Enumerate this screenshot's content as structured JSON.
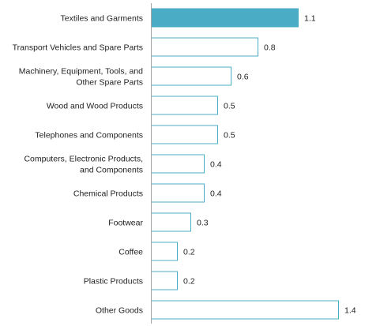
{
  "chart_data": {
    "type": "bar",
    "orientation": "horizontal",
    "categories": [
      [
        "Textiles and Garments"
      ],
      [
        "Transport Vehicles and Spare Parts"
      ],
      [
        "Machinery, Equipment, Tools, and",
        "Other Spare Parts"
      ],
      [
        "Wood and Wood Products"
      ],
      [
        "Telephones and Components"
      ],
      [
        "Computers, Electronic Products,",
        "and Components"
      ],
      [
        "Chemical Products"
      ],
      [
        "Footwear"
      ],
      [
        "Coffee"
      ],
      [
        "Plastic Products"
      ],
      [
        "Other Goods"
      ]
    ],
    "values": [
      1.1,
      0.8,
      0.6,
      0.5,
      0.5,
      0.4,
      0.4,
      0.3,
      0.2,
      0.2,
      1.4
    ],
    "value_labels": [
      "1.1",
      "0.8",
      "0.6",
      "0.5",
      "0.5",
      "0.4",
      "0.4",
      "0.3",
      "0.2",
      "0.2",
      "1.4"
    ],
    "highlight_index": 0,
    "colors": {
      "highlight_fill": "#4bacc6",
      "bar_stroke": "#4bacc6",
      "bar_fill": "#ffffff",
      "axis": "#a6a6a6"
    },
    "xlim": [
      0,
      1.4
    ],
    "grid": false,
    "legend": "none"
  }
}
